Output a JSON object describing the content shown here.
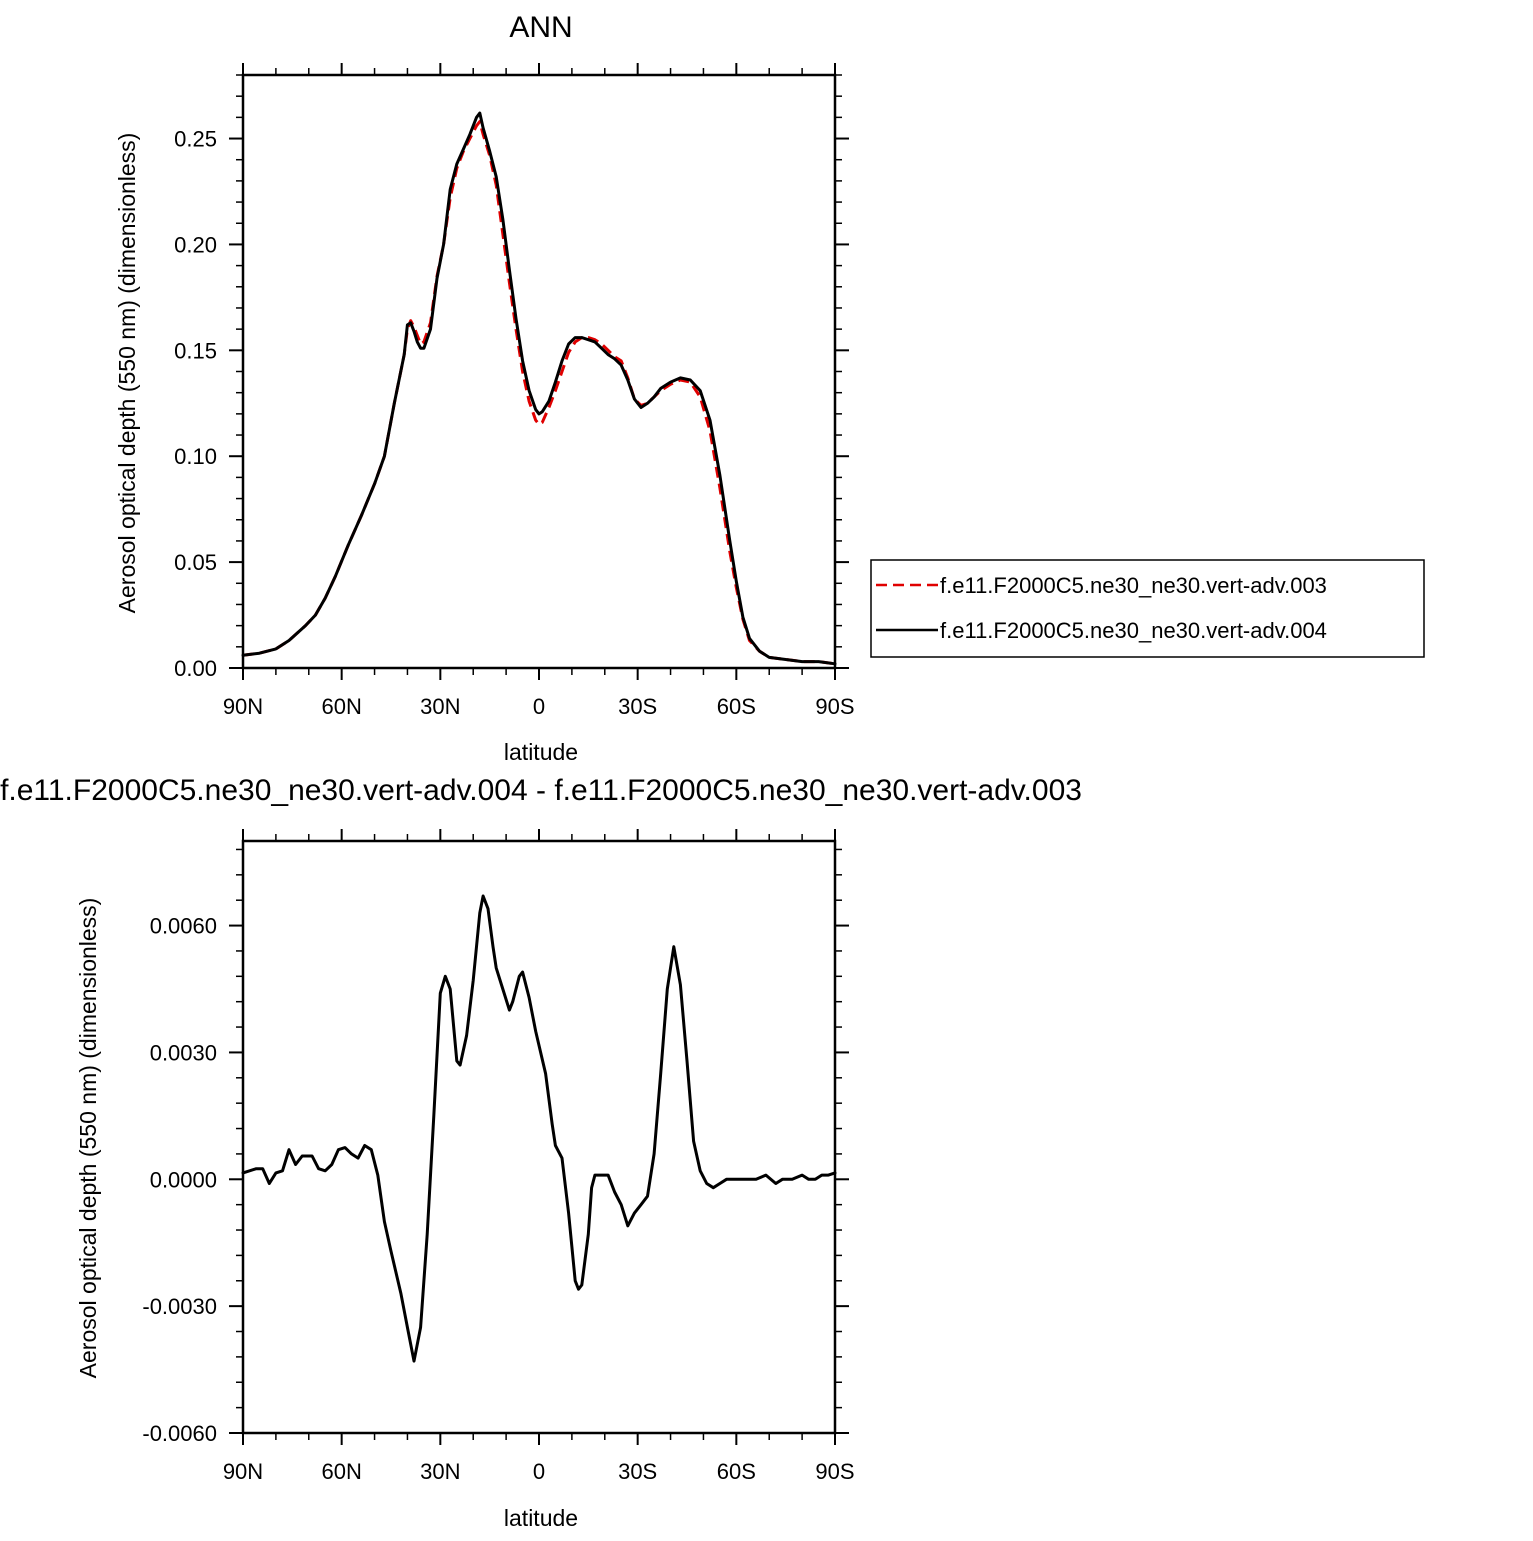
{
  "chart_data": [
    {
      "type": "line",
      "title": "ANN",
      "xlabel": "latitude",
      "ylabel": "Aerosol optical depth (550 nm) (dimensionless)",
      "x_ticks": [
        {
          "value": 90,
          "label": "90N"
        },
        {
          "value": 60,
          "label": "60N"
        },
        {
          "value": 30,
          "label": "30N"
        },
        {
          "value": 0,
          "label": "0"
        },
        {
          "value": -30,
          "label": "30S"
        },
        {
          "value": -60,
          "label": "60S"
        },
        {
          "value": -90,
          "label": "90S"
        }
      ],
      "x_range": [
        90,
        -90
      ],
      "ylim": [
        0,
        0.28
      ],
      "y_ticks": [
        {
          "value": 0.0,
          "label": "0.00"
        },
        {
          "value": 0.05,
          "label": "0.05"
        },
        {
          "value": 0.1,
          "label": "0.10"
        },
        {
          "value": 0.15,
          "label": "0.15"
        },
        {
          "value": 0.2,
          "label": "0.20"
        },
        {
          "value": 0.25,
          "label": "0.25"
        }
      ],
      "legend_position": "right",
      "series": [
        {
          "name": "f.e11.F2000C5.ne30_ne30.vert-adv.003",
          "color": "#e00000",
          "dash": "dashed",
          "points": [
            [
              90,
              0.006
            ],
            [
              85,
              0.007
            ],
            [
              80,
              0.009
            ],
            [
              76,
              0.013
            ],
            [
              71,
              0.02
            ],
            [
              68,
              0.025
            ],
            [
              65,
              0.033
            ],
            [
              62,
              0.043
            ],
            [
              58,
              0.058
            ],
            [
              54,
              0.072
            ],
            [
              50,
              0.087
            ],
            [
              47,
              0.1
            ],
            [
              44,
              0.125
            ],
            [
              41,
              0.148
            ],
            [
              40,
              0.16
            ],
            [
              39,
              0.164
            ],
            [
              38,
              0.161
            ],
            [
              37,
              0.157
            ],
            [
              36,
              0.153
            ],
            [
              35,
              0.154
            ],
            [
              33,
              0.163
            ],
            [
              31,
              0.185
            ],
            [
              29,
              0.2
            ],
            [
              27,
              0.222
            ],
            [
              25,
              0.236
            ],
            [
              23,
              0.244
            ],
            [
              21,
              0.25
            ],
            [
              19,
              0.256
            ],
            [
              18,
              0.258
            ],
            [
              17,
              0.252
            ],
            [
              15,
              0.242
            ],
            [
              13,
              0.228
            ],
            [
              11,
              0.205
            ],
            [
              9,
              0.182
            ],
            [
              7,
              0.16
            ],
            [
              5,
              0.14
            ],
            [
              3,
              0.126
            ],
            [
              1,
              0.117
            ],
            [
              0,
              0.115
            ],
            [
              -1,
              0.116
            ],
            [
              -3,
              0.123
            ],
            [
              -5,
              0.131
            ],
            [
              -7,
              0.14
            ],
            [
              -9,
              0.149
            ],
            [
              -11,
              0.154
            ],
            [
              -13,
              0.156
            ],
            [
              -15,
              0.156
            ],
            [
              -17,
              0.155
            ],
            [
              -19,
              0.153
            ],
            [
              -21,
              0.15
            ],
            [
              -23,
              0.147
            ],
            [
              -25,
              0.145
            ],
            [
              -27,
              0.137
            ],
            [
              -29,
              0.127
            ],
            [
              -31,
              0.124
            ],
            [
              -33,
              0.125
            ],
            [
              -35,
              0.128
            ],
            [
              -37,
              0.131
            ],
            [
              -40,
              0.134
            ],
            [
              -43,
              0.136
            ],
            [
              -46,
              0.135
            ],
            [
              -49,
              0.128
            ],
            [
              -52,
              0.112
            ],
            [
              -55,
              0.085
            ],
            [
              -58,
              0.055
            ],
            [
              -60,
              0.038
            ],
            [
              -62,
              0.023
            ],
            [
              -64,
              0.013
            ],
            [
              -67,
              0.008
            ],
            [
              -70,
              0.005
            ],
            [
              -75,
              0.004
            ],
            [
              -80,
              0.003
            ],
            [
              -85,
              0.003
            ],
            [
              -90,
              0.002
            ]
          ]
        },
        {
          "name": "f.e11.F2000C5.ne30_ne30.vert-adv.004",
          "color": "#000000",
          "dash": "solid",
          "points": [
            [
              90,
              0.006
            ],
            [
              85,
              0.007
            ],
            [
              80,
              0.009
            ],
            [
              76,
              0.013
            ],
            [
              71,
              0.02
            ],
            [
              68,
              0.025
            ],
            [
              65,
              0.033
            ],
            [
              62,
              0.043
            ],
            [
              58,
              0.058
            ],
            [
              54,
              0.072
            ],
            [
              50,
              0.087
            ],
            [
              47,
              0.1
            ],
            [
              44,
              0.125
            ],
            [
              41,
              0.148
            ],
            [
              40,
              0.162
            ],
            [
              39,
              0.163
            ],
            [
              38,
              0.159
            ],
            [
              37,
              0.154
            ],
            [
              36,
              0.151
            ],
            [
              35,
              0.151
            ],
            [
              33,
              0.16
            ],
            [
              31,
              0.184
            ],
            [
              29,
              0.2
            ],
            [
              27,
              0.226
            ],
            [
              25,
              0.238
            ],
            [
              23,
              0.245
            ],
            [
              21,
              0.252
            ],
            [
              19,
              0.26
            ],
            [
              18,
              0.262
            ],
            [
              17,
              0.255
            ],
            [
              15,
              0.244
            ],
            [
              13,
              0.232
            ],
            [
              11,
              0.212
            ],
            [
              9,
              0.188
            ],
            [
              7,
              0.165
            ],
            [
              5,
              0.145
            ],
            [
              3,
              0.131
            ],
            [
              1,
              0.122
            ],
            [
              0,
              0.12
            ],
            [
              -1,
              0.121
            ],
            [
              -3,
              0.126
            ],
            [
              -5,
              0.135
            ],
            [
              -7,
              0.145
            ],
            [
              -9,
              0.153
            ],
            [
              -11,
              0.156
            ],
            [
              -13,
              0.156
            ],
            [
              -15,
              0.155
            ],
            [
              -17,
              0.154
            ],
            [
              -19,
              0.151
            ],
            [
              -21,
              0.148
            ],
            [
              -23,
              0.146
            ],
            [
              -25,
              0.143
            ],
            [
              -27,
              0.136
            ],
            [
              -29,
              0.127
            ],
            [
              -31,
              0.123
            ],
            [
              -33,
              0.125
            ],
            [
              -35,
              0.128
            ],
            [
              -37,
              0.132
            ],
            [
              -40,
              0.135
            ],
            [
              -43,
              0.137
            ],
            [
              -46,
              0.136
            ],
            [
              -49,
              0.131
            ],
            [
              -52,
              0.117
            ],
            [
              -55,
              0.091
            ],
            [
              -58,
              0.06
            ],
            [
              -60,
              0.041
            ],
            [
              -62,
              0.024
            ],
            [
              -64,
              0.014
            ],
            [
              -67,
              0.008
            ],
            [
              -70,
              0.005
            ],
            [
              -75,
              0.004
            ],
            [
              -80,
              0.003
            ],
            [
              -85,
              0.003
            ],
            [
              -90,
              0.002
            ]
          ]
        }
      ]
    },
    {
      "type": "line",
      "title": "f.e11.F2000C5.ne30_ne30.vert-adv.004 - f.e11.F2000C5.ne30_ne30.vert-adv.003",
      "xlabel": "latitude",
      "ylabel": "Aerosol optical depth (550 nm) (dimensionless)",
      "x_ticks": [
        {
          "value": 90,
          "label": "90N"
        },
        {
          "value": 60,
          "label": "60N"
        },
        {
          "value": 30,
          "label": "30N"
        },
        {
          "value": 0,
          "label": "0"
        },
        {
          "value": -30,
          "label": "30S"
        },
        {
          "value": -60,
          "label": "60S"
        },
        {
          "value": -90,
          "label": "90S"
        }
      ],
      "x_range": [
        90,
        -90
      ],
      "ylim": [
        -0.006,
        0.008
      ],
      "y_ticks": [
        {
          "value": -0.006,
          "label": "-0.0060"
        },
        {
          "value": -0.003,
          "label": "-0.0030"
        },
        {
          "value": 0.0,
          "label": "0.0000"
        },
        {
          "value": 0.003,
          "label": "0.0030"
        },
        {
          "value": 0.006,
          "label": "0.0060"
        }
      ],
      "series": [
        {
          "color": "#000000",
          "dash": "solid",
          "points": [
            [
              90,
              0.00015
            ],
            [
              86,
              0.00025
            ],
            [
              84,
              0.00025
            ],
            [
              82,
              -0.0001
            ],
            [
              80,
              0.00015
            ],
            [
              78,
              0.0002
            ],
            [
              76,
              0.0007
            ],
            [
              74,
              0.00035
            ],
            [
              72,
              0.00055
            ],
            [
              69,
              0.00055
            ],
            [
              67,
              0.00025
            ],
            [
              65,
              0.0002
            ],
            [
              63,
              0.00035
            ],
            [
              61,
              0.0007
            ],
            [
              59,
              0.00075
            ],
            [
              57,
              0.0006
            ],
            [
              55,
              0.0005
            ],
            [
              53,
              0.0008
            ],
            [
              51,
              0.0007
            ],
            [
              49,
              0.0001
            ],
            [
              47,
              -0.001
            ],
            [
              45,
              -0.0017
            ],
            [
              42,
              -0.0027
            ],
            [
              40,
              -0.0035
            ],
            [
              38,
              -0.0043
            ],
            [
              36,
              -0.0035
            ],
            [
              34,
              -0.0013
            ],
            [
              32,
              0.0015
            ],
            [
              30,
              0.0044
            ],
            [
              28.5,
              0.0048
            ],
            [
              27,
              0.0045
            ],
            [
              25,
              0.0028
            ],
            [
              24,
              0.0027
            ],
            [
              22,
              0.0034
            ],
            [
              20,
              0.0047
            ],
            [
              18,
              0.0063
            ],
            [
              17,
              0.0067
            ],
            [
              15.5,
              0.0064
            ],
            [
              14,
              0.0055
            ],
            [
              13,
              0.005
            ],
            [
              11,
              0.0045
            ],
            [
              9,
              0.004
            ],
            [
              8,
              0.0042
            ],
            [
              6,
              0.0048
            ],
            [
              5,
              0.0049
            ],
            [
              3,
              0.0043
            ],
            [
              1,
              0.0035
            ],
            [
              -2,
              0.0025
            ],
            [
              -4,
              0.0013
            ],
            [
              -5,
              0.0008
            ],
            [
              -7,
              0.0005
            ],
            [
              -9,
              -0.0008
            ],
            [
              -11,
              -0.0024
            ],
            [
              -12,
              -0.0026
            ],
            [
              -13,
              -0.0025
            ],
            [
              -15,
              -0.0013
            ],
            [
              -16,
              -0.0002
            ],
            [
              -17,
              0.0001
            ],
            [
              -19,
              0.0001
            ],
            [
              -21,
              0.0001
            ],
            [
              -23,
              -0.0003
            ],
            [
              -25,
              -0.0006
            ],
            [
              -27,
              -0.0011
            ],
            [
              -29,
              -0.0008
            ],
            [
              -31,
              -0.0006
            ],
            [
              -33,
              -0.0004
            ],
            [
              -35,
              0.0006
            ],
            [
              -37,
              0.0025
            ],
            [
              -39,
              0.0045
            ],
            [
              -41,
              0.0055
            ],
            [
              -43,
              0.0046
            ],
            [
              -45,
              0.0028
            ],
            [
              -47,
              0.0009
            ],
            [
              -49,
              0.0002
            ],
            [
              -51,
              -0.0001
            ],
            [
              -53,
              -0.0002
            ],
            [
              -55,
              -0.0001
            ],
            [
              -57,
              0.0
            ],
            [
              -60,
              0.0
            ],
            [
              -63,
              0.0
            ],
            [
              -66,
              0.0
            ],
            [
              -69,
              0.0001
            ],
            [
              -72,
              -0.0001
            ],
            [
              -74,
              0.0
            ],
            [
              -77,
              0.0
            ],
            [
              -80,
              0.0001
            ],
            [
              -82,
              0.0
            ],
            [
              -84,
              0.0
            ],
            [
              -86,
              0.0001
            ],
            [
              -88,
              0.0001
            ],
            [
              -90,
              0.00015
            ]
          ]
        }
      ]
    }
  ]
}
